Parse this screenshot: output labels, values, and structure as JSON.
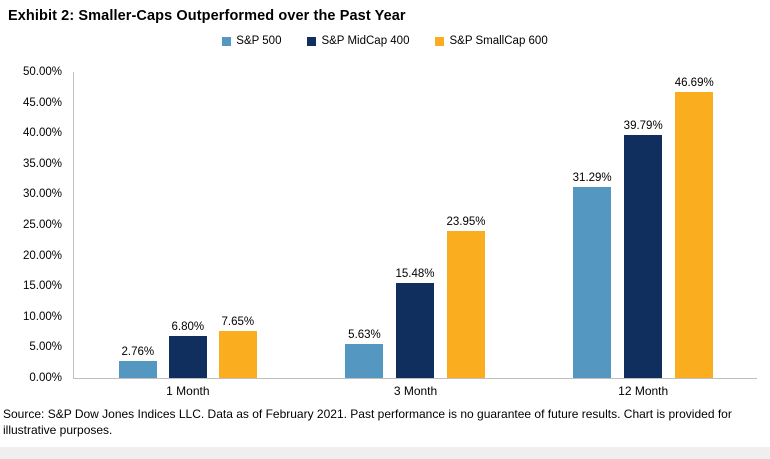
{
  "title": "Exhibit 2: Smaller-Caps Outperformed over the Past Year",
  "source_note": "Source: S&P Dow Jones Indices LLC. Data as of February 2021. Past performance is no guarantee of future results. Chart is provided for illustrative purposes.",
  "chart_data": {
    "type": "bar",
    "title": "Exhibit 2: Smaller-Caps Outperformed over the Past Year",
    "categories": [
      "1 Month",
      "3 Month",
      "12 Month"
    ],
    "series": [
      {
        "name": "S&P 500",
        "color": "#5498C2",
        "values": [
          2.76,
          5.63,
          31.29
        ]
      },
      {
        "name": "S&P MidCap 400",
        "color": "#102F5E",
        "values": [
          6.8,
          15.48,
          39.79
        ]
      },
      {
        "name": "S&P SmallCap 600",
        "color": "#FAAD1E",
        "values": [
          7.65,
          23.95,
          46.69
        ]
      }
    ],
    "xlabel": "",
    "ylabel": "",
    "ylim": [
      0,
      50
    ],
    "y_tick_step": 5,
    "y_tick_labels": [
      "0.00%",
      "5.00%",
      "10.00%",
      "15.00%",
      "20.00%",
      "25.00%",
      "30.00%",
      "35.00%",
      "40.00%",
      "45.00%",
      "50.00%"
    ],
    "value_labels": [
      [
        "2.76%",
        "5.63%",
        "31.29%"
      ],
      [
        "6.80%",
        "15.48%",
        "39.79%"
      ],
      [
        "7.65%",
        "23.95%",
        "46.69%"
      ]
    ],
    "grid": false,
    "legend_position": "top-center",
    "axis_color": "#BFBFBF",
    "text_color": "#000000",
    "background_color": "#FFFFFF"
  }
}
